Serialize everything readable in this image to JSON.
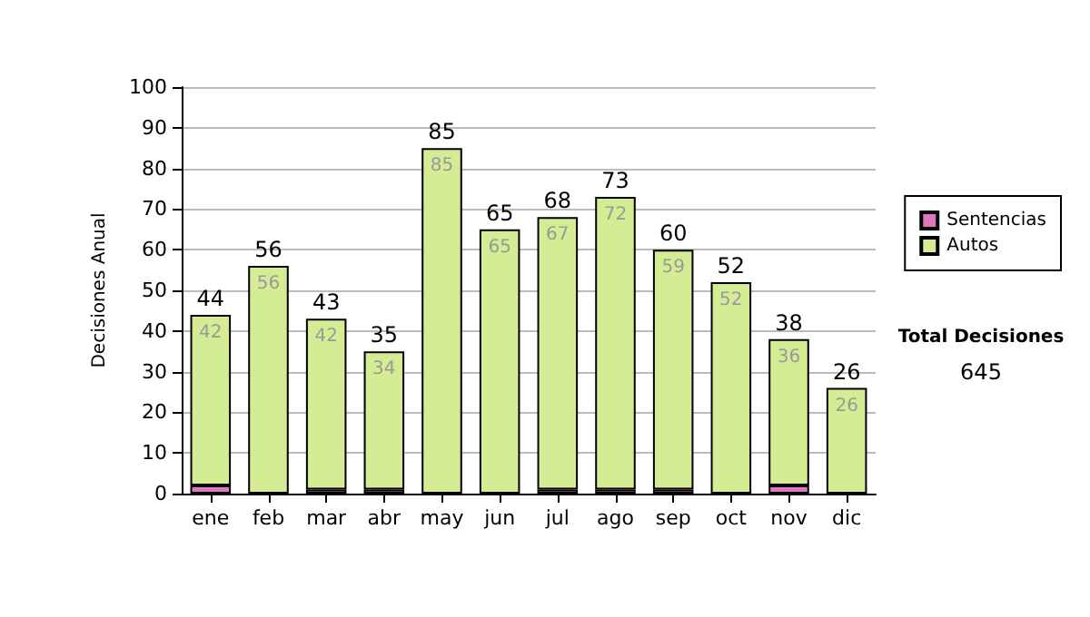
{
  "chart_data": {
    "type": "bar",
    "stacked": true,
    "ylabel": "Decisiones Anual",
    "categories": [
      "ene",
      "feb",
      "mar",
      "abr",
      "may",
      "jun",
      "jul",
      "ago",
      "sep",
      "oct",
      "nov",
      "dic"
    ],
    "series": [
      {
        "name": "Sentencias",
        "color": "#dd77c0",
        "values": [
          2,
          0,
          1,
          1,
          0,
          0,
          1,
          1,
          1,
          0,
          2,
          0
        ]
      },
      {
        "name": "Autos",
        "color": "#d4ec94",
        "values": [
          42,
          56,
          42,
          34,
          85,
          65,
          67,
          72,
          59,
          52,
          36,
          26
        ],
        "value_labels": [
          "42",
          "56",
          "42",
          "34",
          "85",
          "65",
          "67",
          "72",
          "59",
          "52",
          "36",
          "26"
        ]
      }
    ],
    "totals": [
      "44",
      "56",
      "43",
      "35",
      "85",
      "65",
      "68",
      "73",
      "60",
      "52",
      "38",
      "26"
    ],
    "ylim": [
      0,
      100
    ],
    "yticks": [
      0,
      10,
      20,
      30,
      40,
      50,
      60,
      70,
      80,
      90,
      100
    ],
    "grid": "y",
    "legend": "right",
    "annotations": [
      "Total Decisiones",
      "645"
    ]
  }
}
